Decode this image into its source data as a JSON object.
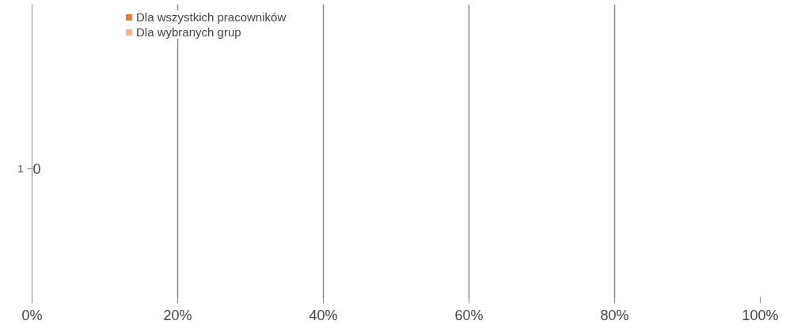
{
  "chart_data": {
    "type": "bar",
    "orientation": "horizontal",
    "categories": [
      "1"
    ],
    "series": [
      {
        "name": "Dla wszystkich pracowników",
        "color": "#e07b39",
        "values": [
          0
        ],
        "value_labels": [
          "0"
        ]
      },
      {
        "name": "Dla wybranych grup",
        "color": "#f8b48f",
        "values": [
          0
        ],
        "value_labels": [
          null
        ]
      }
    ],
    "xlim": [
      0,
      100
    ],
    "xticks": [
      {
        "value": 0,
        "label": "0%"
      },
      {
        "value": 20,
        "label": "20%"
      },
      {
        "value": 40,
        "label": "40%"
      },
      {
        "value": 60,
        "label": "60%"
      },
      {
        "value": 80,
        "label": "80%"
      },
      {
        "value": 100,
        "label": "100%"
      }
    ],
    "grid": "x",
    "legend": "top"
  }
}
